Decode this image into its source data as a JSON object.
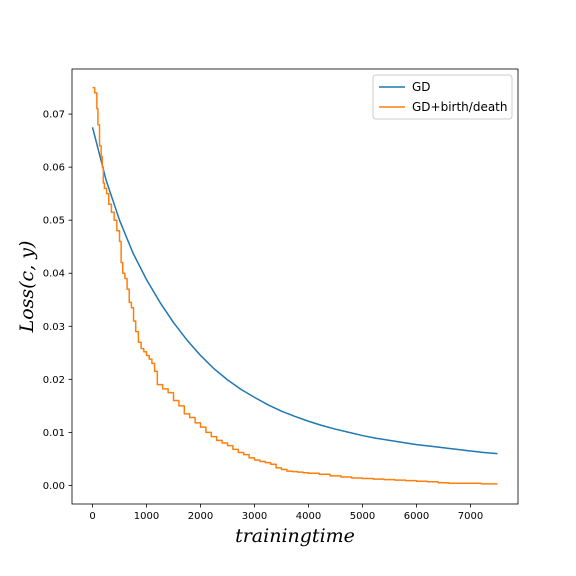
{
  "chart_data": {
    "type": "line",
    "title": "",
    "xlabel": "$trainingtime$",
    "ylabel": "$Loss(c,y)$",
    "xlabel_display": "trainingtime",
    "ylabel_display": "Loss(c, y)",
    "xlim": [
      -380,
      7880
    ],
    "ylim": [
      -0.0035,
      0.0785
    ],
    "xticks": [
      0,
      1000,
      2000,
      3000,
      4000,
      5000,
      6000,
      7000
    ],
    "yticks": [
      0.0,
      0.01,
      0.02,
      0.03,
      0.04,
      0.05,
      0.06,
      0.07
    ],
    "ytick_format": 2,
    "grid": false,
    "legend_position": "top-right",
    "series": [
      {
        "name": "GD",
        "color": "#1f77b4",
        "style": "smooth",
        "x": [
          0,
          250,
          500,
          750,
          1000,
          1250,
          1500,
          1750,
          2000,
          2250,
          2500,
          2750,
          3000,
          3250,
          3500,
          3750,
          4000,
          4250,
          4500,
          4750,
          5000,
          5250,
          5500,
          5750,
          6000,
          6250,
          6500,
          6750,
          7000,
          7250,
          7500
        ],
        "y": [
          0.0675,
          0.0576,
          0.05,
          0.0438,
          0.0388,
          0.0345,
          0.0307,
          0.0274,
          0.0245,
          0.022,
          0.0199,
          0.0181,
          0.0166,
          0.0152,
          0.014,
          0.013,
          0.0121,
          0.0113,
          0.0106,
          0.01,
          0.0094,
          0.0089,
          0.0085,
          0.0081,
          0.0077,
          0.0074,
          0.0071,
          0.0068,
          0.0065,
          0.0062,
          0.006
        ]
      },
      {
        "name": "GD+birth/death",
        "color": "#ff7f0e",
        "style": "steps",
        "x": [
          0,
          40,
          80,
          100,
          130,
          160,
          180,
          200,
          220,
          260,
          300,
          350,
          400,
          450,
          500,
          530,
          560,
          600,
          640,
          680,
          720,
          760,
          800,
          850,
          900,
          950,
          1000,
          1050,
          1100,
          1150,
          1200,
          1300,
          1400,
          1500,
          1600,
          1700,
          1800,
          1900,
          2000,
          2100,
          2200,
          2300,
          2400,
          2500,
          2600,
          2700,
          2800,
          2900,
          3000,
          3100,
          3200,
          3300,
          3400,
          3500,
          3600,
          3700,
          3800,
          3900,
          4000,
          4200,
          4400,
          4600,
          4800,
          5000,
          5200,
          5400,
          5600,
          5800,
          6000,
          6200,
          6400,
          6600,
          6800,
          7000,
          7200,
          7500
        ],
        "y": [
          0.075,
          0.074,
          0.071,
          0.068,
          0.064,
          0.062,
          0.06,
          0.057,
          0.056,
          0.055,
          0.053,
          0.0515,
          0.05,
          0.048,
          0.046,
          0.042,
          0.04,
          0.039,
          0.037,
          0.0345,
          0.0335,
          0.031,
          0.029,
          0.027,
          0.0258,
          0.0252,
          0.0245,
          0.0238,
          0.023,
          0.0215,
          0.019,
          0.0182,
          0.0175,
          0.016,
          0.015,
          0.0135,
          0.0128,
          0.0118,
          0.011,
          0.01,
          0.0092,
          0.0085,
          0.008,
          0.0075,
          0.0068,
          0.0062,
          0.0058,
          0.0052,
          0.0048,
          0.0045,
          0.0043,
          0.004,
          0.0033,
          0.003,
          0.0027,
          0.0026,
          0.0025,
          0.0024,
          0.0023,
          0.0021,
          0.0018,
          0.0016,
          0.0014,
          0.0013,
          0.0012,
          0.0011,
          0.001,
          0.0009,
          0.0008,
          0.0007,
          0.0005,
          0.0004,
          0.0004,
          0.0004,
          0.0003,
          0.0003
        ]
      }
    ]
  }
}
